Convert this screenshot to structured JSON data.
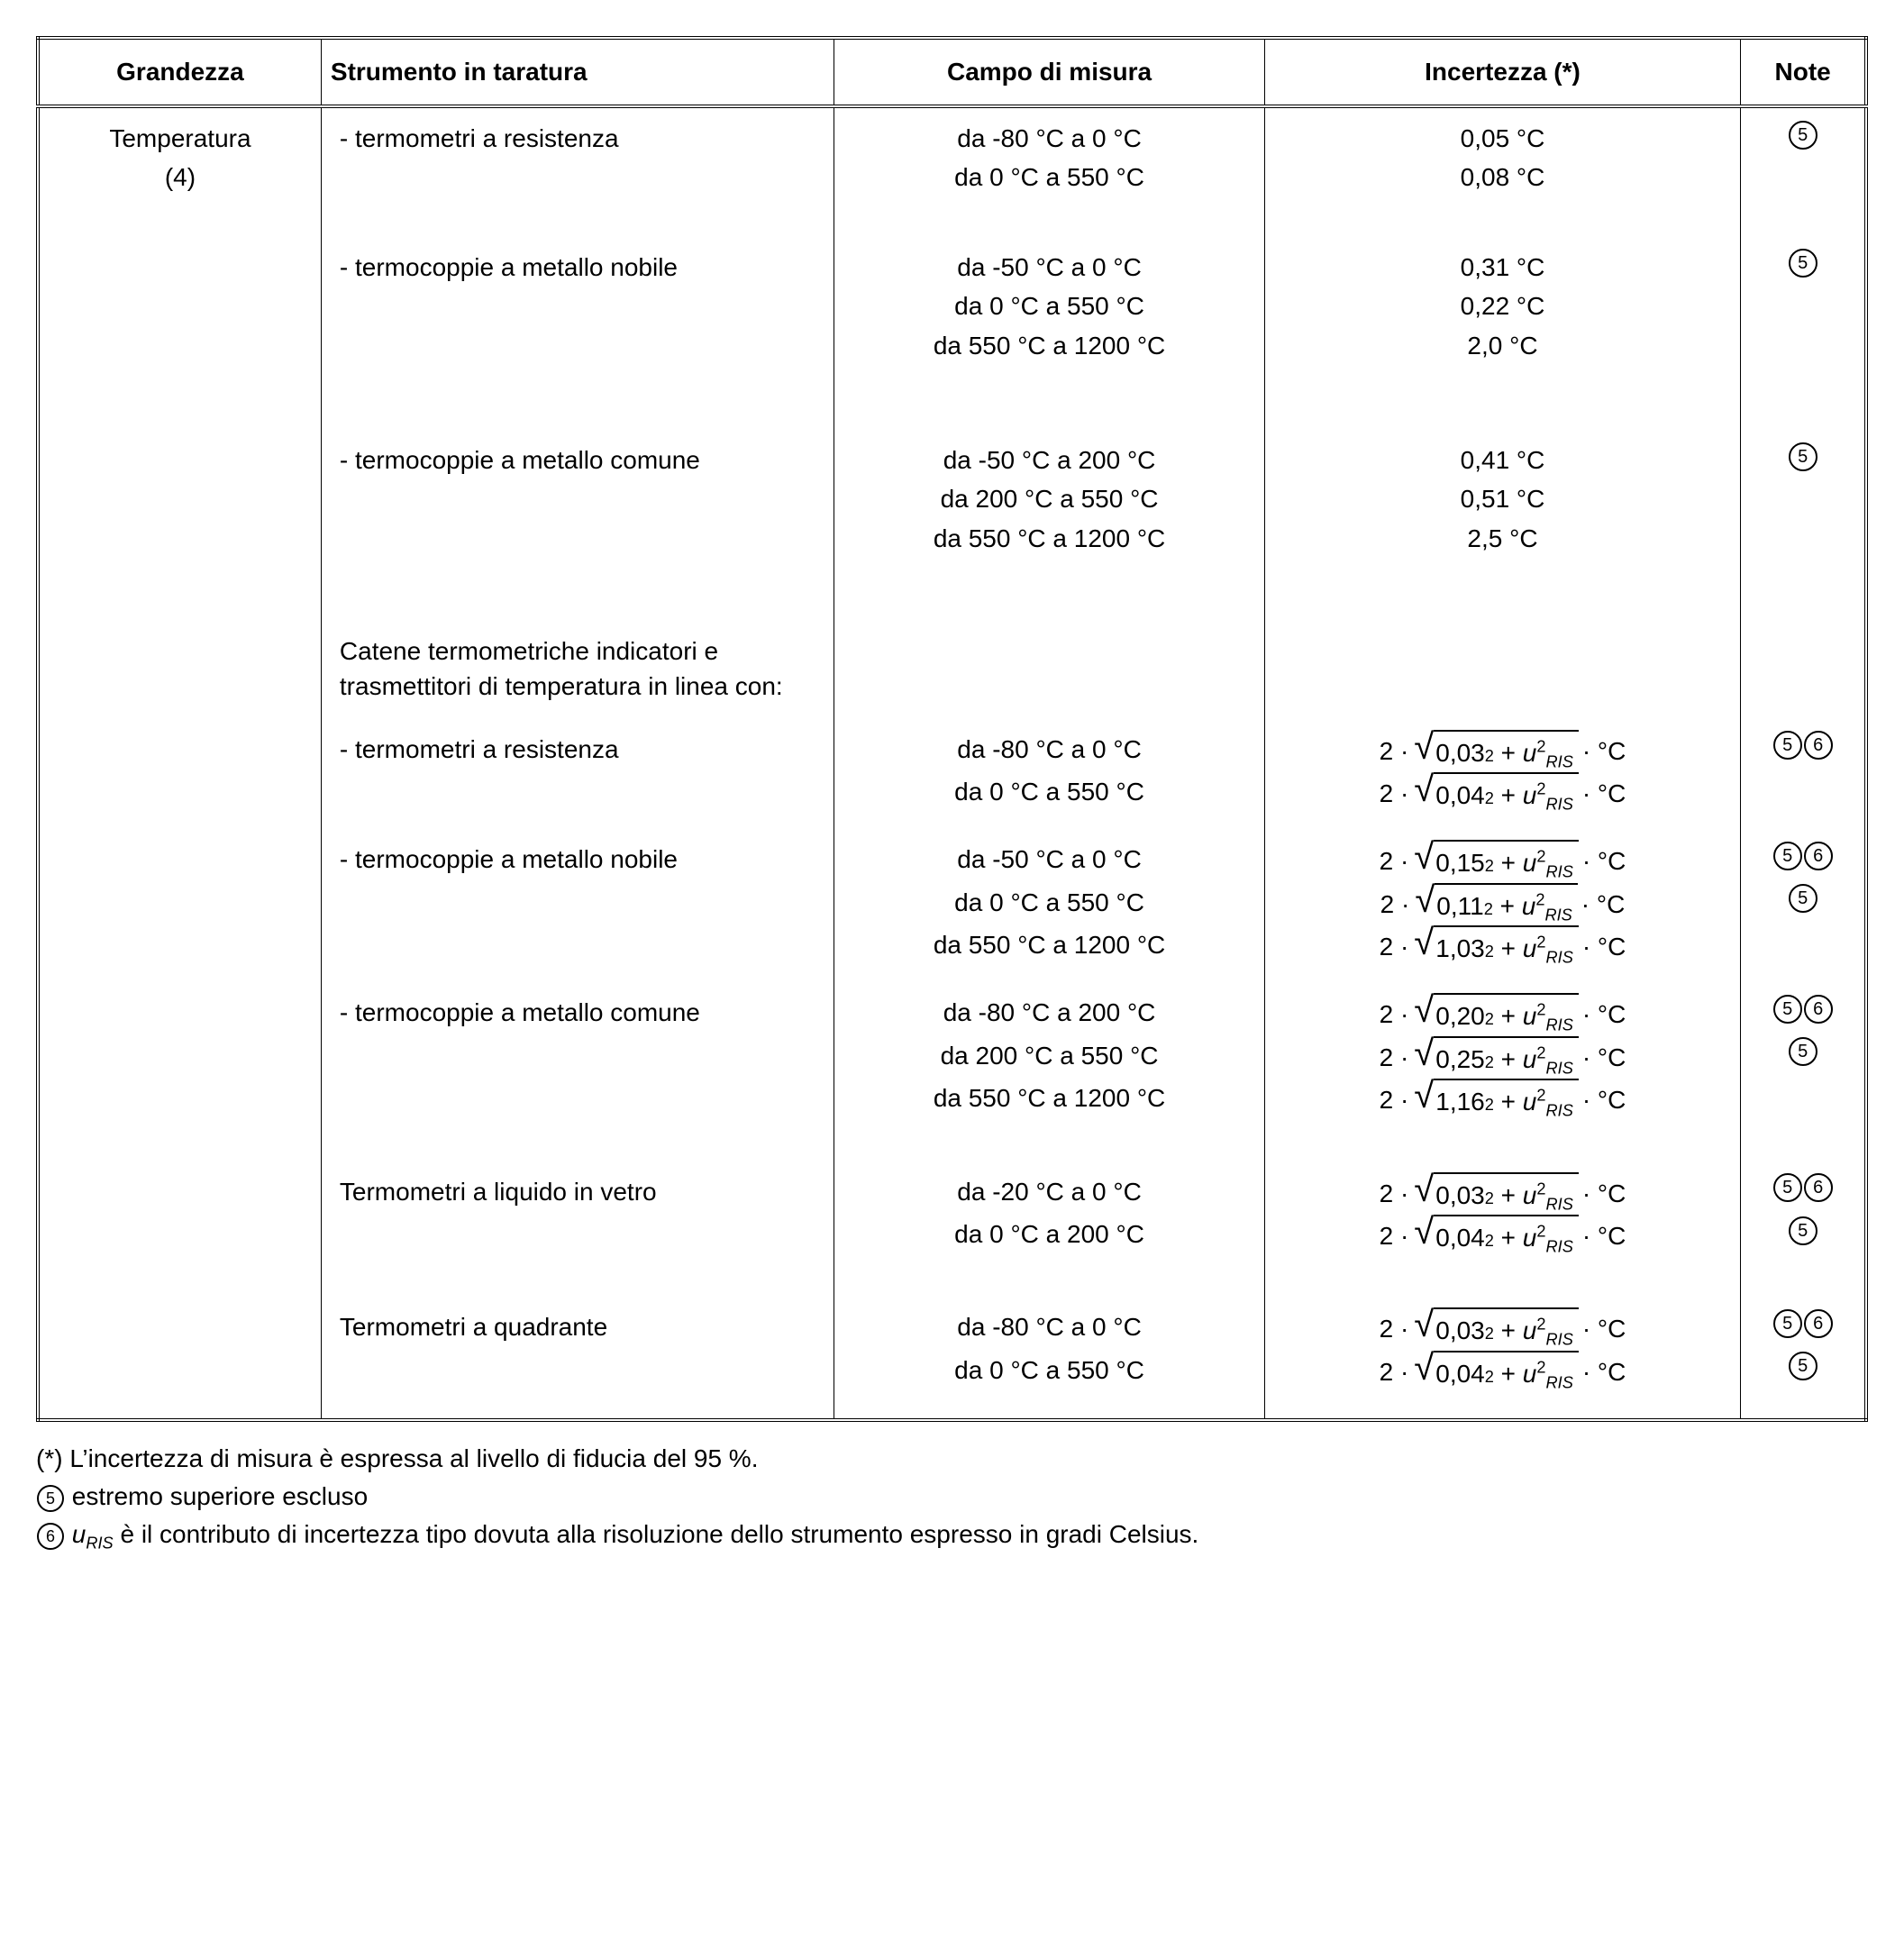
{
  "headers": {
    "col1": "Grandezza",
    "col2": "Strumento in taratura",
    "col3": "Campo di misura",
    "col4": "Incertezza (*)",
    "col5": "Note"
  },
  "grandezza": {
    "line1": "Temperatura",
    "line2": "(4)"
  },
  "note_symbols": {
    "n5": "5",
    "n6": "6"
  },
  "group_header": "Catene termometriche indicatori e trasmettitori di temperatura in linea con:",
  "sections": {
    "s1": {
      "label": "- termometri a resistenza",
      "r1": {
        "campo": "da -80 °C a 0 °C",
        "inc": "0,05 °C"
      },
      "r2": {
        "campo": "da 0 °C a 550 °C",
        "inc": "0,08 °C"
      },
      "notes": "5"
    },
    "s2": {
      "label": "- termocoppie a metallo nobile",
      "r1": {
        "campo": "da -50 °C a 0 °C",
        "inc": "0,31 °C"
      },
      "r2": {
        "campo": "da 0 °C a 550 °C",
        "inc": "0,22 °C"
      },
      "r3": {
        "campo": "da 550 °C a 1200 °C",
        "inc": "2,0 °C"
      },
      "notes": "5"
    },
    "s3": {
      "label": "- termocoppie a metallo comune",
      "r1": {
        "campo": "da -50 °C a 200 °C",
        "inc": "0,41 °C"
      },
      "r2": {
        "campo": "da 200 °C a 550 °C",
        "inc": "0,51 °C"
      },
      "r3": {
        "campo": "da 550 °C a 1200 °C",
        "inc": "2,5 °C"
      },
      "notes": "5"
    },
    "s4": {
      "label": "- termometri a resistenza",
      "r1": {
        "campo": "da -80 °C a 0 °C",
        "coef": "0,03"
      },
      "r2": {
        "campo": "da 0 °C a 550 °C",
        "coef": "0,04"
      },
      "notes": "56"
    },
    "s5": {
      "label": "- termocoppie a metallo nobile",
      "r1": {
        "campo": "da -50 °C a 0 °C",
        "coef": "0,15"
      },
      "r2": {
        "campo": "da 0 °C a 550 °C",
        "coef": "0,11"
      },
      "r3": {
        "campo": "da 550 °C a 1200 °C",
        "coef": "1,03"
      },
      "notes": "56_5"
    },
    "s6": {
      "label": "- termocoppie a metallo comune",
      "r1": {
        "campo": "da -80 °C a 200 °C",
        "coef": "0,20"
      },
      "r2": {
        "campo": "da 200 °C a 550 °C",
        "coef": "0,25"
      },
      "r3": {
        "campo": "da 550 °C a 1200 °C",
        "coef": "1,16"
      },
      "notes": "56_5"
    },
    "s7": {
      "label": "Termometri a liquido in vetro",
      "r1": {
        "campo": "da -20 °C a 0 °C",
        "coef": "0,03"
      },
      "r2": {
        "campo": "da 0 °C a 200 °C",
        "coef": "0,04"
      },
      "notes": "56_5"
    },
    "s8": {
      "label": "Termometri a quadrante",
      "r1": {
        "campo": "da -80 °C a 0 °C",
        "coef": "0,03"
      },
      "r2": {
        "campo": "da 0 °C a 550 °C",
        "coef": "0,04"
      },
      "notes": "56_5"
    }
  },
  "formula": {
    "prefix": "2 ·",
    "u_sym": "u",
    "u_sub": "RIS",
    "u_sup": "2",
    "coef_sup": "2",
    "plus": "+",
    "unit": "· °C"
  },
  "footnotes": {
    "f1": "(*) L’incertezza di misura è espressa al livello di fiducia del 95 %.",
    "f2": "estremo superiore escluso",
    "f3_pre": "u",
    "f3_sub": "RIS",
    "f3_post": " è il contributo di incertezza tipo dovuta alla risoluzione dello strumento espresso in gradi Celsius."
  }
}
